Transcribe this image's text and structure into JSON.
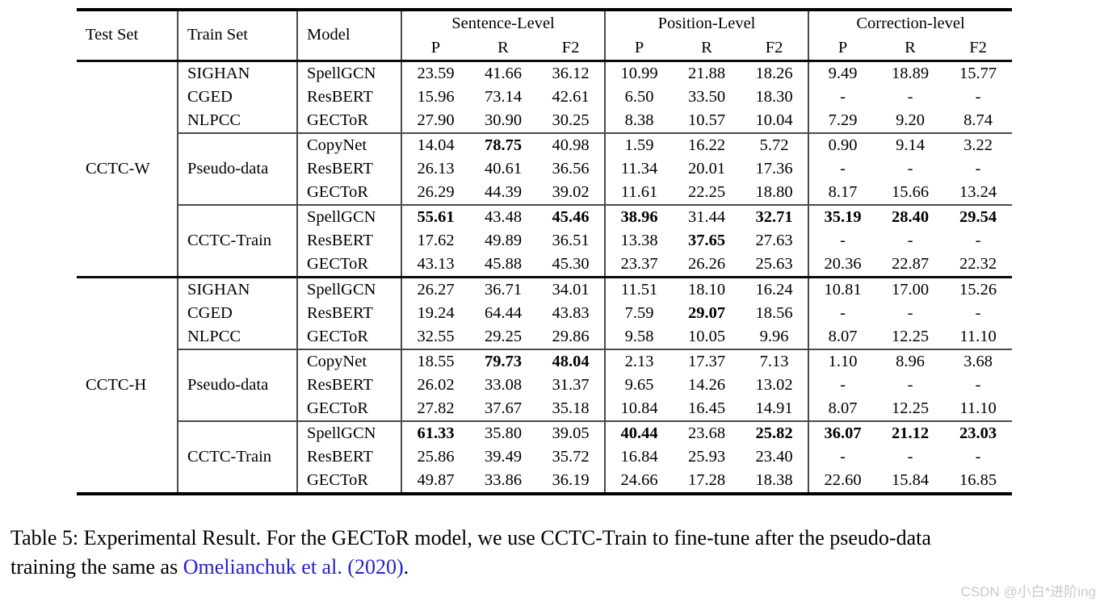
{
  "colors": {
    "citation_link": "#2222cc",
    "watermark": "#c9c9c9",
    "text": "#000000",
    "background": "#ffffff"
  },
  "table": {
    "header": {
      "test_set": "Test Set",
      "train_set": "Train Set",
      "model": "Model",
      "groups": [
        {
          "label": "Sentence-Level",
          "sub": [
            "P",
            "R",
            "F2"
          ]
        },
        {
          "label": "Position-Level",
          "sub": [
            "P",
            "R",
            "F2"
          ]
        },
        {
          "label": "Correction-level",
          "sub": [
            "P",
            "R",
            "F2"
          ]
        }
      ]
    },
    "sections": [
      {
        "test_set": "CCTC-W",
        "groups": [
          {
            "train_set": [
              "SIGHAN",
              "CGED",
              "NLPCC"
            ],
            "rows": [
              {
                "model": "SpellGCN",
                "values": [
                  "23.59",
                  "41.66",
                  "36.12",
                  "10.99",
                  "21.88",
                  "18.26",
                  "9.49",
                  "18.89",
                  "15.77"
                ],
                "bold": [
                  0,
                  0,
                  0,
                  0,
                  0,
                  0,
                  0,
                  0,
                  0
                ]
              },
              {
                "model": "ResBERT",
                "values": [
                  "15.96",
                  "73.14",
                  "42.61",
                  "6.50",
                  "33.50",
                  "18.30",
                  "-",
                  "-",
                  "-"
                ],
                "bold": [
                  0,
                  0,
                  0,
                  0,
                  0,
                  0,
                  0,
                  0,
                  0
                ]
              },
              {
                "model": "GECToR",
                "values": [
                  "27.90",
                  "30.90",
                  "30.25",
                  "8.38",
                  "10.57",
                  "10.04",
                  "7.29",
                  "9.20",
                  "8.74"
                ],
                "bold": [
                  0,
                  0,
                  0,
                  0,
                  0,
                  0,
                  0,
                  0,
                  0
                ]
              }
            ]
          },
          {
            "train_set": [
              "Pseudo-data"
            ],
            "rows": [
              {
                "model": "CopyNet",
                "values": [
                  "14.04",
                  "78.75",
                  "40.98",
                  "1.59",
                  "16.22",
                  "5.72",
                  "0.90",
                  "9.14",
                  "3.22"
                ],
                "bold": [
                  0,
                  1,
                  0,
                  0,
                  0,
                  0,
                  0,
                  0,
                  0
                ]
              },
              {
                "model": "ResBERT",
                "values": [
                  "26.13",
                  "40.61",
                  "36.56",
                  "11.34",
                  "20.01",
                  "17.36",
                  "-",
                  "-",
                  "-"
                ],
                "bold": [
                  0,
                  0,
                  0,
                  0,
                  0,
                  0,
                  0,
                  0,
                  0
                ]
              },
              {
                "model": "GECToR",
                "values": [
                  "26.29",
                  "44.39",
                  "39.02",
                  "11.61",
                  "22.25",
                  "18.80",
                  "8.17",
                  "15.66",
                  "13.24"
                ],
                "bold": [
                  0,
                  0,
                  0,
                  0,
                  0,
                  0,
                  0,
                  0,
                  0
                ]
              }
            ]
          },
          {
            "train_set": [
              "CCTC-Train"
            ],
            "rows": [
              {
                "model": "SpellGCN",
                "values": [
                  "55.61",
                  "43.48",
                  "45.46",
                  "38.96",
                  "31.44",
                  "32.71",
                  "35.19",
                  "28.40",
                  "29.54"
                ],
                "bold": [
                  1,
                  0,
                  1,
                  1,
                  0,
                  1,
                  1,
                  1,
                  1
                ]
              },
              {
                "model": "ResBERT",
                "values": [
                  "17.62",
                  "49.89",
                  "36.51",
                  "13.38",
                  "37.65",
                  "27.63",
                  "-",
                  "-",
                  "-"
                ],
                "bold": [
                  0,
                  0,
                  0,
                  0,
                  1,
                  0,
                  0,
                  0,
                  0
                ]
              },
              {
                "model": "GECToR",
                "values": [
                  "43.13",
                  "45.88",
                  "45.30",
                  "23.37",
                  "26.26",
                  "25.63",
                  "20.36",
                  "22.87",
                  "22.32"
                ],
                "bold": [
                  0,
                  0,
                  0,
                  0,
                  0,
                  0,
                  0,
                  0,
                  0
                ]
              }
            ]
          }
        ]
      },
      {
        "test_set": "CCTC-H",
        "groups": [
          {
            "train_set": [
              "SIGHAN",
              "CGED",
              "NLPCC"
            ],
            "rows": [
              {
                "model": "SpellGCN",
                "values": [
                  "26.27",
                  "36.71",
                  "34.01",
                  "11.51",
                  "18.10",
                  "16.24",
                  "10.81",
                  "17.00",
                  "15.26"
                ],
                "bold": [
                  0,
                  0,
                  0,
                  0,
                  0,
                  0,
                  0,
                  0,
                  0
                ]
              },
              {
                "model": "ResBERT",
                "values": [
                  "19.24",
                  "64.44",
                  "43.83",
                  "7.59",
                  "29.07",
                  "18.56",
                  "-",
                  "-",
                  "-"
                ],
                "bold": [
                  0,
                  0,
                  0,
                  0,
                  1,
                  0,
                  0,
                  0,
                  0
                ]
              },
              {
                "model": "GECToR",
                "values": [
                  "32.55",
                  "29.25",
                  "29.86",
                  "9.58",
                  "10.05",
                  "9.96",
                  "8.07",
                  "12.25",
                  "11.10"
                ],
                "bold": [
                  0,
                  0,
                  0,
                  0,
                  0,
                  0,
                  0,
                  0,
                  0
                ]
              }
            ]
          },
          {
            "train_set": [
              "Pseudo-data"
            ],
            "rows": [
              {
                "model": "CopyNet",
                "values": [
                  "18.55",
                  "79.73",
                  "48.04",
                  "2.13",
                  "17.37",
                  "7.13",
                  "1.10",
                  "8.96",
                  "3.68"
                ],
                "bold": [
                  0,
                  1,
                  1,
                  0,
                  0,
                  0,
                  0,
                  0,
                  0
                ]
              },
              {
                "model": "ResBERT",
                "values": [
                  "26.02",
                  "33.08",
                  "31.37",
                  "9.65",
                  "14.26",
                  "13.02",
                  "-",
                  "-",
                  "-"
                ],
                "bold": [
                  0,
                  0,
                  0,
                  0,
                  0,
                  0,
                  0,
                  0,
                  0
                ]
              },
              {
                "model": "GECToR",
                "values": [
                  "27.82",
                  "37.67",
                  "35.18",
                  "10.84",
                  "16.45",
                  "14.91",
                  "8.07",
                  "12.25",
                  "11.10"
                ],
                "bold": [
                  0,
                  0,
                  0,
                  0,
                  0,
                  0,
                  0,
                  0,
                  0
                ]
              }
            ]
          },
          {
            "train_set": [
              "CCTC-Train"
            ],
            "rows": [
              {
                "model": "SpellGCN",
                "values": [
                  "61.33",
                  "35.80",
                  "39.05",
                  "40.44",
                  "23.68",
                  "25.82",
                  "36.07",
                  "21.12",
                  "23.03"
                ],
                "bold": [
                  1,
                  0,
                  0,
                  1,
                  0,
                  1,
                  1,
                  1,
                  1
                ]
              },
              {
                "model": "ResBERT",
                "values": [
                  "25.86",
                  "39.49",
                  "35.72",
                  "16.84",
                  "25.93",
                  "23.40",
                  "-",
                  "-",
                  "-"
                ],
                "bold": [
                  0,
                  0,
                  0,
                  0,
                  0,
                  0,
                  0,
                  0,
                  0
                ]
              },
              {
                "model": "GECToR",
                "values": [
                  "49.87",
                  "33.86",
                  "36.19",
                  "24.66",
                  "17.28",
                  "18.38",
                  "22.60",
                  "15.84",
                  "16.85"
                ],
                "bold": [
                  0,
                  0,
                  0,
                  0,
                  0,
                  0,
                  0,
                  0,
                  0
                ]
              }
            ]
          }
        ]
      }
    ]
  },
  "caption": {
    "line1": "Table 5: Experimental Result.  For the GECToR model, we use CCTC-Train to fine-tune after the pseudo-data",
    "line2_prefix": "training the same as ",
    "citation": "Omelianchuk et al. (2020)",
    "line2_suffix": "."
  },
  "watermark": {
    "text": "CSDN @小白*进阶ing"
  }
}
